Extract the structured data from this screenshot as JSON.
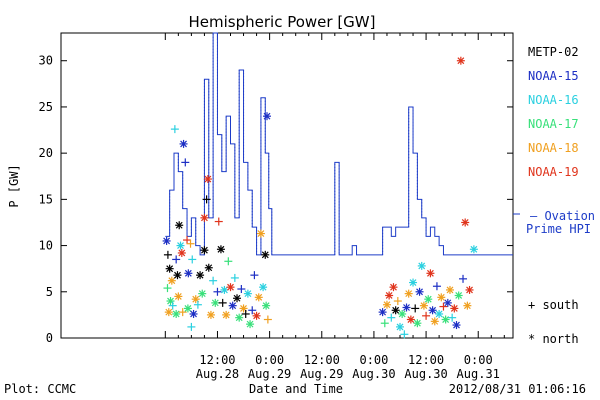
{
  "chart_data": {
    "type": "line",
    "title": "Hemispheric Power [GW]",
    "ylabel": "P [GW]",
    "xlabel": "Date and Time",
    "ylim": [
      0,
      33
    ],
    "xlim_hours": [
      0,
      104
    ],
    "yticks": [
      0,
      5,
      10,
      15,
      20,
      25,
      30
    ],
    "xticks": [
      {
        "h": 36,
        "time": "12:00",
        "date": "Aug.28"
      },
      {
        "h": 48,
        "time": "0:00",
        "date": "Aug.29"
      },
      {
        "h": 60,
        "time": "12:00",
        "date": "Aug.29"
      },
      {
        "h": 72,
        "time": "0:00",
        "date": "Aug.30"
      },
      {
        "h": 84,
        "time": "12:00",
        "date": "Aug.30"
      },
      {
        "h": 96,
        "time": "0:00",
        "date": "Aug.31"
      }
    ],
    "plot_label": "Plot: CCMC",
    "timestamp": "2012/08/31 01:06:16",
    "legend": [
      {
        "name": "METP-02",
        "color": "#000000"
      },
      {
        "name": "NOAA-15",
        "color": "#1d2fc4"
      },
      {
        "name": "NOAA-16",
        "color": "#2ad0e0"
      },
      {
        "name": "NOAA-17",
        "color": "#38e07a"
      },
      {
        "name": "NOAA-18",
        "color": "#f0a020"
      },
      {
        "name": "NOAA-19",
        "color": "#e0341c"
      }
    ],
    "ovation_label_1": "— Ovation",
    "ovation_label_2": "Prime HPI",
    "ovation_color": "#1d3cc8",
    "marker_legend_south": "+ south",
    "marker_legend_north": "* north",
    "ovation_series": [
      [
        24,
        11
      ],
      [
        25,
        16
      ],
      [
        26,
        20
      ],
      [
        27,
        18
      ],
      [
        28,
        14
      ],
      [
        29,
        11
      ],
      [
        30,
        13
      ],
      [
        31,
        10
      ],
      [
        32,
        9
      ],
      [
        33,
        28
      ],
      [
        34,
        13
      ],
      [
        35,
        33
      ],
      [
        36,
        22
      ],
      [
        37,
        18
      ],
      [
        38,
        24
      ],
      [
        39,
        21
      ],
      [
        40,
        13
      ],
      [
        41,
        29
      ],
      [
        42,
        19
      ],
      [
        43,
        16
      ],
      [
        44,
        12
      ],
      [
        45,
        9
      ],
      [
        46,
        26
      ],
      [
        47,
        20
      ],
      [
        47.8,
        14
      ],
      [
        48.5,
        9
      ],
      [
        62,
        9
      ],
      [
        63,
        19
      ],
      [
        64,
        9
      ],
      [
        66,
        9
      ],
      [
        67,
        10
      ],
      [
        68,
        9
      ],
      [
        73,
        9
      ],
      [
        74,
        12
      ],
      [
        76,
        11
      ],
      [
        77,
        12
      ],
      [
        79,
        12
      ],
      [
        80,
        25
      ],
      [
        81,
        20
      ],
      [
        82,
        15
      ],
      [
        83,
        13
      ],
      [
        84,
        11
      ],
      [
        85,
        12
      ],
      [
        86,
        11
      ],
      [
        87,
        10
      ],
      [
        88,
        9
      ],
      [
        89,
        9
      ],
      [
        90,
        9
      ],
      [
        104,
        9
      ]
    ],
    "satellite_points": [
      {
        "x": 24.3,
        "y": 10.5,
        "m": "*",
        "c": 1
      },
      {
        "x": 24.6,
        "y": 9,
        "m": "+",
        "c": 0
      },
      {
        "x": 25,
        "y": 7.5,
        "m": "*",
        "c": 0
      },
      {
        "x": 25.5,
        "y": 6.2,
        "m": "*",
        "c": 4
      },
      {
        "x": 24.5,
        "y": 5.4,
        "m": "+",
        "c": 3
      },
      {
        "x": 25.2,
        "y": 4,
        "m": "*",
        "c": 3
      },
      {
        "x": 26.2,
        "y": 22.6,
        "m": "+",
        "c": 2
      },
      {
        "x": 26.5,
        "y": 8.5,
        "m": "+",
        "c": 1
      },
      {
        "x": 26.8,
        "y": 6.8,
        "m": "*",
        "c": 0
      },
      {
        "x": 27.2,
        "y": 12.2,
        "m": "*",
        "c": 0
      },
      {
        "x": 27.5,
        "y": 10,
        "m": "*",
        "c": 2
      },
      {
        "x": 27.8,
        "y": 9.2,
        "m": "*",
        "c": 5
      },
      {
        "x": 28.2,
        "y": 21,
        "m": "*",
        "c": 1
      },
      {
        "x": 28.6,
        "y": 19,
        "m": "+",
        "c": 1
      },
      {
        "x": 29,
        "y": 10.6,
        "m": "+",
        "c": 5
      },
      {
        "x": 29.3,
        "y": 7,
        "m": "*",
        "c": 1
      },
      {
        "x": 29.8,
        "y": 10.2,
        "m": "+",
        "c": 4
      },
      {
        "x": 30.2,
        "y": 8.5,
        "m": "+",
        "c": 2
      },
      {
        "x": 24.8,
        "y": 2.8,
        "m": "*",
        "c": 4
      },
      {
        "x": 25.7,
        "y": 3.5,
        "m": "+",
        "c": 2
      },
      {
        "x": 26.5,
        "y": 2.6,
        "m": "*",
        "c": 3
      },
      {
        "x": 27,
        "y": 4.5,
        "m": "*",
        "c": 4
      },
      {
        "x": 28,
        "y": 2.8,
        "m": "+",
        "c": 4
      },
      {
        "x": 29.2,
        "y": 3.2,
        "m": "*",
        "c": 3
      },
      {
        "x": 30,
        "y": 1.2,
        "m": "+",
        "c": 2
      },
      {
        "x": 30.5,
        "y": 2.6,
        "m": "*",
        "c": 1
      },
      {
        "x": 31,
        "y": 4.2,
        "m": "*",
        "c": 4
      },
      {
        "x": 31.5,
        "y": 3.6,
        "m": "+",
        "c": 2
      },
      {
        "x": 32,
        "y": 6.8,
        "m": "*",
        "c": 0
      },
      {
        "x": 32.5,
        "y": 4.8,
        "m": "*",
        "c": 3
      },
      {
        "x": 33,
        "y": 13,
        "m": "*",
        "c": 5
      },
      {
        "x": 33.5,
        "y": 15,
        "m": "+",
        "c": 0
      },
      {
        "x": 33.8,
        "y": 17.2,
        "m": "*",
        "c": 5
      },
      {
        "x": 33,
        "y": 9.5,
        "m": "*",
        "c": 0
      },
      {
        "x": 34,
        "y": 7.6,
        "m": "*",
        "c": 0
      },
      {
        "x": 34.5,
        "y": 2.5,
        "m": "*",
        "c": 4
      },
      {
        "x": 35,
        "y": 6.2,
        "m": "+",
        "c": 2
      },
      {
        "x": 35.5,
        "y": 3.8,
        "m": "*",
        "c": 3
      },
      {
        "x": 36,
        "y": 5,
        "m": "+",
        "c": 1
      },
      {
        "x": 36.3,
        "y": 12.6,
        "m": "+",
        "c": 5
      },
      {
        "x": 36.8,
        "y": 9.6,
        "m": "*",
        "c": 0
      },
      {
        "x": 37.2,
        "y": 3.8,
        "m": "+",
        "c": 0
      },
      {
        "x": 37.6,
        "y": 5.2,
        "m": "*",
        "c": 2
      },
      {
        "x": 38,
        "y": 2.5,
        "m": "*",
        "c": 4
      },
      {
        "x": 38.5,
        "y": 8.3,
        "m": "+",
        "c": 3
      },
      {
        "x": 39,
        "y": 5.5,
        "m": "*",
        "c": 5
      },
      {
        "x": 39.5,
        "y": 3.5,
        "m": "*",
        "c": 1
      },
      {
        "x": 40,
        "y": 6.5,
        "m": "+",
        "c": 2
      },
      {
        "x": 40.5,
        "y": 4.3,
        "m": "*",
        "c": 0
      },
      {
        "x": 41,
        "y": 2.2,
        "m": "*",
        "c": 3
      },
      {
        "x": 41.5,
        "y": 5.3,
        "m": "+",
        "c": 1
      },
      {
        "x": 42,
        "y": 3.2,
        "m": "*",
        "c": 4
      },
      {
        "x": 42.5,
        "y": 2.6,
        "m": "+",
        "c": 0
      },
      {
        "x": 43,
        "y": 4.8,
        "m": "*",
        "c": 2
      },
      {
        "x": 43.5,
        "y": 1.5,
        "m": "*",
        "c": 3
      },
      {
        "x": 44,
        "y": 3,
        "m": "+",
        "c": 1
      },
      {
        "x": 44.5,
        "y": 6.8,
        "m": "+",
        "c": 1
      },
      {
        "x": 45,
        "y": 2.4,
        "m": "*",
        "c": 5
      },
      {
        "x": 45.5,
        "y": 4.4,
        "m": "*",
        "c": 4
      },
      {
        "x": 46,
        "y": 11.3,
        "m": "*",
        "c": 4
      },
      {
        "x": 46.5,
        "y": 5.5,
        "m": "*",
        "c": 2
      },
      {
        "x": 47,
        "y": 9,
        "m": "*",
        "c": 0
      },
      {
        "x": 47.4,
        "y": 24,
        "m": "*",
        "c": 1
      },
      {
        "x": 47.2,
        "y": 3.5,
        "m": "*",
        "c": 3
      },
      {
        "x": 47.6,
        "y": 2,
        "m": "+",
        "c": 4
      },
      {
        "x": 74,
        "y": 2.8,
        "m": "*",
        "c": 1
      },
      {
        "x": 74.5,
        "y": 1.6,
        "m": "+",
        "c": 3
      },
      {
        "x": 75,
        "y": 3.6,
        "m": "*",
        "c": 4
      },
      {
        "x": 75.5,
        "y": 4.6,
        "m": "*",
        "c": 5
      },
      {
        "x": 76,
        "y": 2.2,
        "m": "+",
        "c": 2
      },
      {
        "x": 76.5,
        "y": 5.5,
        "m": "*",
        "c": 5
      },
      {
        "x": 77,
        "y": 3,
        "m": "*",
        "c": 0
      },
      {
        "x": 77.5,
        "y": 4,
        "m": "+",
        "c": 4
      },
      {
        "x": 78,
        "y": 1.2,
        "m": "*",
        "c": 2
      },
      {
        "x": 78.5,
        "y": 2.6,
        "m": "*",
        "c": 3
      },
      {
        "x": 79,
        "y": 0.4,
        "m": "+",
        "c": 2
      },
      {
        "x": 79.5,
        "y": 3.3,
        "m": "*",
        "c": 1
      },
      {
        "x": 80,
        "y": 4.8,
        "m": "*",
        "c": 4
      },
      {
        "x": 80.5,
        "y": 2,
        "m": "*",
        "c": 5
      },
      {
        "x": 81,
        "y": 6,
        "m": "*",
        "c": 2
      },
      {
        "x": 81.5,
        "y": 3.2,
        "m": "+",
        "c": 0
      },
      {
        "x": 82,
        "y": 1.6,
        "m": "*",
        "c": 3
      },
      {
        "x": 82.5,
        "y": 5,
        "m": "*",
        "c": 1
      },
      {
        "x": 83,
        "y": 7.8,
        "m": "*",
        "c": 2
      },
      {
        "x": 83.5,
        "y": 3.5,
        "m": "*",
        "c": 4
      },
      {
        "x": 84,
        "y": 2.4,
        "m": "+",
        "c": 5
      },
      {
        "x": 84.5,
        "y": 4.2,
        "m": "*",
        "c": 3
      },
      {
        "x": 85,
        "y": 7,
        "m": "*",
        "c": 5
      },
      {
        "x": 85.5,
        "y": 3,
        "m": "*",
        "c": 1
      },
      {
        "x": 86,
        "y": 1.8,
        "m": "*",
        "c": 4
      },
      {
        "x": 86.5,
        "y": 5.6,
        "m": "+",
        "c": 1
      },
      {
        "x": 87,
        "y": 2.6,
        "m": "*",
        "c": 2
      },
      {
        "x": 87.5,
        "y": 4.4,
        "m": "*",
        "c": 4
      },
      {
        "x": 88,
        "y": 3.4,
        "m": "+",
        "c": 5
      },
      {
        "x": 88.5,
        "y": 2,
        "m": "*",
        "c": 3
      },
      {
        "x": 89,
        "y": 3.8,
        "m": "*",
        "c": 1
      },
      {
        "x": 89.5,
        "y": 5.2,
        "m": "*",
        "c": 4
      },
      {
        "x": 90,
        "y": 2.2,
        "m": "+",
        "c": 2
      },
      {
        "x": 90.5,
        "y": 3.2,
        "m": "*",
        "c": 5
      },
      {
        "x": 91,
        "y": 1.4,
        "m": "*",
        "c": 1
      },
      {
        "x": 91.5,
        "y": 4.6,
        "m": "*",
        "c": 3
      },
      {
        "x": 92,
        "y": 30,
        "m": "*",
        "c": 5
      },
      {
        "x": 92.5,
        "y": 6.4,
        "m": "+",
        "c": 1
      },
      {
        "x": 93,
        "y": 12.5,
        "m": "*",
        "c": 5
      },
      {
        "x": 93.5,
        "y": 3.5,
        "m": "*",
        "c": 4
      },
      {
        "x": 94,
        "y": 5.2,
        "m": "*",
        "c": 5
      },
      {
        "x": 95,
        "y": 9.6,
        "m": "*",
        "c": 2
      }
    ]
  }
}
